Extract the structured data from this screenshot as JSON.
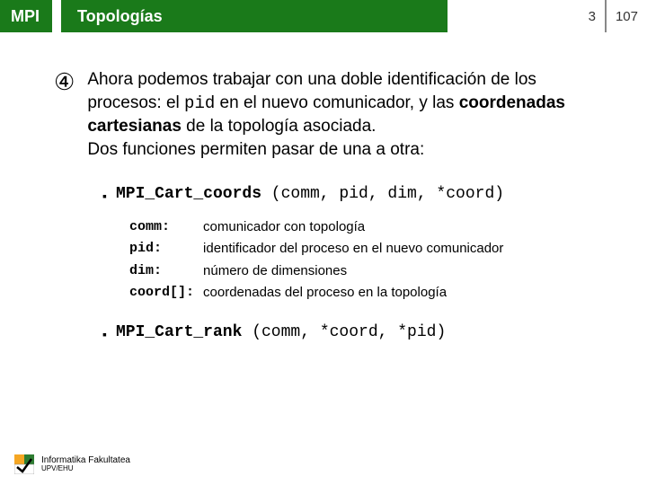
{
  "header": {
    "mpi": "MPI",
    "topic": "Topologías",
    "page": "3",
    "total": "107",
    "bg_color": "#1a7a1a",
    "text_color": "#ffffff"
  },
  "bullet_symbol": "④",
  "paragraph": {
    "part1": "Ahora podemos trabajar con una doble identificación de los procesos: el ",
    "pid": "pid",
    "part2": " en el nuevo comunicador, y las ",
    "bold": "coordenadas cartesianas",
    "part3": " de la topología asociada.",
    "line2": "Dos funciones permiten pasar de una a otra:"
  },
  "func1": {
    "bullet": "▪",
    "name": "MPI_Cart_coords",
    "args": " (comm, pid, dim, *coord)",
    "params": [
      {
        "name": "comm",
        "colon": ":",
        "desc": "comunicador con topología"
      },
      {
        "name": "pid",
        "colon": ":",
        "desc": "identificador del proceso en el nuevo comunicador"
      },
      {
        "name": "dim",
        "colon": ":",
        "desc": "número de dimensiones"
      },
      {
        "name": "coord[]",
        "colon": ":",
        "desc": "coordenadas del proceso en la topología"
      }
    ]
  },
  "func2": {
    "bullet": "▪",
    "name": "MPI_Cart_rank",
    "args": " (comm, *coord, *pid)"
  },
  "footer": {
    "line1": "Informatika Fakultatea",
    "line2": "UPV/EHU",
    "logo_colors": {
      "tl": "#f5a623",
      "tr": "#2e7d32",
      "bottom": "#ffffff",
      "check": "#000000"
    }
  }
}
